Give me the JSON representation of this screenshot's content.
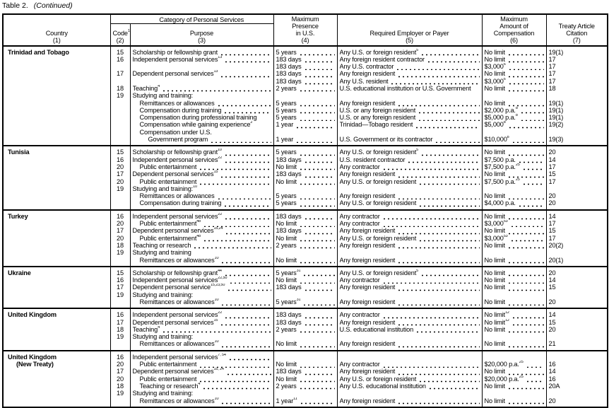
{
  "title": {
    "label": "Table 2.",
    "note": "(Continued)"
  },
  "headers": {
    "country": "Country",
    "country_num": "(1)",
    "code": "Code",
    "code_sup": "1",
    "code_num": "(2)",
    "category": "Category of Personal Services",
    "purpose": "Purpose",
    "purpose_num": "(3)",
    "presence": [
      "Maximum",
      "Presence",
      "in U.S."
    ],
    "presence_num": "(4)",
    "payer": "Required Employer or Payer",
    "payer_num": "(5)",
    "amount": [
      "Maximum",
      "Amount of",
      "Compensation"
    ],
    "amount_num": "(6)",
    "citation": [
      "Treaty Article",
      "Citation"
    ],
    "citation_num": "(7)"
  },
  "sections": [
    {
      "country": [
        "Trinidad and Tobago"
      ],
      "rows": [
        {
          "code": "15",
          "purpose": "Scholarship or fellowship grant",
          "presence": "5 years",
          "payer": "Any U.S. or foreign resident",
          "payer_sup": "5",
          "amount": "No limit",
          "citation": "19(1)"
        },
        {
          "code": "16",
          "purpose": "Independent personal services",
          "purpose_sup": "13",
          "presence": "183 days",
          "payer": "Any foreign resident contractor",
          "amount": "No limit",
          "citation": "17"
        },
        {
          "presence": "183 days",
          "payer": "Any U.S. contractor",
          "amount": "$3,000",
          "amount_sup": "6",
          "citation": "17"
        },
        {
          "code": "17",
          "purpose": "Dependent personal services",
          "purpose_sup": "13",
          "presence": "183 days",
          "payer": "Any foreign resident",
          "amount": "No limit",
          "citation": "17"
        },
        {
          "presence": "183 days",
          "payer": "Any U.S. resident",
          "amount": "$3,000",
          "amount_sup": "6",
          "citation": "17"
        },
        {
          "code": "18",
          "purpose": "Teaching",
          "purpose_sup": "4",
          "presence": "2 years",
          "payer": "U.S. educational institution or U.S. Government",
          "payer_nd": true,
          "amount": "No limit",
          "citation": "18"
        },
        {
          "code": "19",
          "purpose": "Studying and training:",
          "purpose_nd": true
        },
        {
          "indent": 1,
          "purpose": "Remittances or allowances",
          "presence": "5 years",
          "payer": "Any foreign resident",
          "amount": "No limit",
          "citation": "19(1)"
        },
        {
          "indent": 1,
          "purpose": "Compensation during training",
          "presence": "5 years",
          "payer": "U.S. or any foreign resident",
          "amount": "$2,000 p.a.",
          "amount_sup": "8",
          "citation": "19(1)"
        },
        {
          "indent": 1,
          "purpose": "Compensation during professional training",
          "purpose_nd": true,
          "presence": "5 years",
          "payer": "U.S. or any foreign resident",
          "amount": "$5,000 p.a.",
          "amount_sup": "8",
          "citation": "19(1)"
        },
        {
          "indent": 1,
          "purpose": "Compensation while gaining experience",
          "purpose_sup": "2",
          "purpose_nd": true,
          "presence": "1 year",
          "payer": "Trinidad—Tobago resident",
          "amount": "$5,000",
          "amount_sup": "8",
          "citation": "19(2)"
        },
        {
          "indent": 1,
          "purpose": "Compensation under U.S.",
          "purpose_nd": true
        },
        {
          "indent": 2,
          "purpose": "Government program",
          "presence": "1 year",
          "payer": "U.S. Government or its contractor",
          "amount": "$10,000",
          "amount_sup": "8",
          "citation": "19(3)"
        }
      ]
    },
    {
      "country": [
        "Tunisia"
      ],
      "rows": [
        {
          "code": "15",
          "purpose": "Scholarship or fellowship grant",
          "purpose_sup": "10",
          "presence": "5 years",
          "payer": "Any U.S. or foreign resident",
          "payer_sup": "5",
          "amount": "No limit",
          "citation": "20"
        },
        {
          "code": "16",
          "purpose": "Independent personal services",
          "purpose_sup": "22",
          "presence": "183 days",
          "payer": "U.S. resident contractor",
          "amount": "$7,500 p.a.",
          "citation": "14"
        },
        {
          "code": "20",
          "indent": 1,
          "purpose": "Public entertainment",
          "presence": "No limit",
          "payer": "Any contractor",
          "amount": "$7,500 p.a.",
          "amount_sup": "25",
          "citation": "17"
        },
        {
          "code": "17",
          "purpose": "Dependent personal services",
          "purpose_sup": "15",
          "presence": "183 days",
          "payer": "Any foreign resident",
          "amount": "No limit",
          "citation": "15"
        },
        {
          "code": "20",
          "indent": 1,
          "purpose": "Public entertainment",
          "presence": "No limit",
          "payer": "Any U.S. or foreign resident",
          "amount": "$7,500 p.a.",
          "amount_sup": "25",
          "citation": "17"
        },
        {
          "code": "19",
          "purpose": "Studying and training:",
          "purpose_sup": "10",
          "purpose_nd": true
        },
        {
          "indent": 1,
          "purpose": "Remittances or allowances",
          "presence": "5 years",
          "payer": "Any foreign resident",
          "amount": "No limit",
          "citation": "20"
        },
        {
          "indent": 1,
          "purpose": "Compensation during training",
          "presence": "5 years",
          "payer": "Any U.S. or foreign resident",
          "amount": "$4,000 p.a.",
          "citation": "20"
        }
      ]
    },
    {
      "country": [
        "Turkey"
      ],
      "rows": [
        {
          "code": "16",
          "purpose": "Independent personal services",
          "purpose_sup": "22",
          "presence": "183 days",
          "payer": "Any contractor",
          "amount": "No limit",
          "citation": "14"
        },
        {
          "code": "20",
          "indent": 1,
          "purpose": "Public entertainment",
          "purpose_sup": "48",
          "presence": "No limit",
          "payer": "Any contractor",
          "amount": "$3,000",
          "amount_sup": "53",
          "citation": "17"
        },
        {
          "code": "17",
          "purpose": "Dependent personal services",
          "purpose_sup": "15,24",
          "presence": "183 days",
          "payer": "Any foreign resident",
          "amount": "No limit",
          "citation": "15"
        },
        {
          "code": "20",
          "indent": 1,
          "purpose": "Public entertainment",
          "purpose_sup": "48",
          "presence": "No limit",
          "payer": "Any U.S. or foreign resident",
          "amount": "$3,000",
          "amount_sup": "53",
          "citation": "17"
        },
        {
          "code": "18",
          "purpose": "Teaching or research",
          "presence": "2 years",
          "payer": "Any foreign resident",
          "amount": "No limit",
          "citation": "20(2)"
        },
        {
          "code": "19",
          "purpose": "Studying and training",
          "purpose_nd": true
        },
        {
          "indent": 1,
          "purpose": "Remittances or allowances",
          "purpose_sup": "10",
          "presence": "No limit",
          "payer": "Any foreign resident",
          "amount": "No limit",
          "citation": "20(1)"
        }
      ]
    },
    {
      "country": [
        "Ukraine"
      ],
      "rows": [
        {
          "code": "15",
          "purpose": "Scholarship or fellowship grant",
          "purpose_sup": "44",
          "presence": "5 years",
          "presence_sup": "31",
          "payer": "Any U.S. or foreign resident",
          "payer_sup": "5",
          "amount": "No limit",
          "citation": "20"
        },
        {
          "code": "16",
          "purpose": "Independent personal services",
          "purpose_sup": "22,50",
          "presence": "No limit",
          "payer": "Any contractor",
          "amount": "No limit",
          "citation": "14"
        },
        {
          "code": "17",
          "purpose": "Dependent personal service",
          "purpose_sup": "15,23,50",
          "presence": "183 days",
          "payer": "Any foreign resident",
          "amount": "No limit",
          "citation": "15"
        },
        {
          "code": "19",
          "purpose": "Studying and training:",
          "purpose_nd": true
        },
        {
          "indent": 1,
          "purpose": "Remittances or allowances",
          "purpose_sup": "10",
          "presence": "5 years",
          "presence_sup": "31",
          "payer": "Any foreign resident",
          "amount": "No limit",
          "citation": "20"
        }
      ]
    },
    {
      "country": [
        "United Kingdom"
      ],
      "rows": [
        {
          "code": "16",
          "purpose": "Independent personal services",
          "purpose_sup": "22",
          "presence": "183 days",
          "payer": "Any contractor",
          "amount": "No limit",
          "amount_sup": "12",
          "citation": "14"
        },
        {
          "code": "17",
          "purpose": "Dependent personal services",
          "purpose_sup": "15",
          "presence": "183 days",
          "payer": "Any foreign resident",
          "amount": "No limit",
          "amount_sup": "12",
          "citation": "15"
        },
        {
          "code": "18",
          "purpose": "Teaching",
          "purpose_sup": "4",
          "presence": "2 years",
          "payer": "U.S. educational institution",
          "amount": "No limit",
          "citation": "20"
        },
        {
          "code": "19",
          "purpose": "Studying and training:",
          "purpose_nd": true
        },
        {
          "indent": 1,
          "purpose": "Remittances or allowances",
          "purpose_sup": "10",
          "presence": "No limit",
          "payer": "Any foreign resident",
          "amount": "No limit",
          "citation": "21"
        }
      ]
    },
    {
      "country": [
        "United Kingdom",
        "(New Treaty)"
      ],
      "rows": [
        {
          "code": "16",
          "purpose": "Independent personal services",
          "purpose_sup": "7, 54"
        },
        {
          "code": "20",
          "indent": 1,
          "purpose": "Public entertainment",
          "presence": "No limit",
          "payer": "Any contractor",
          "amount": "$20,000 p.a.",
          "amount_sup": "25",
          "citation": "16"
        },
        {
          "code": "17",
          "purpose": "Dependent personal services",
          "purpose_sup": "15, 24",
          "presence": "183 days",
          "payer": "Any foreign resident",
          "amount": "No limit",
          "citation": "14"
        },
        {
          "code": "20",
          "indent": 1,
          "purpose": "Public entertainment",
          "presence": "No limit",
          "payer": "Any U.S. or foreign resident",
          "amount": "$20,000 p.a.",
          "amount_sup": "25",
          "citation": "16"
        },
        {
          "code": "18",
          "indent": 1,
          "purpose": "Teaching or research",
          "purpose_sup": "4",
          "presence": "2 years",
          "payer": "Any U.S. educational institution",
          "amount": "No limit",
          "citation": "20A"
        },
        {
          "code": "19",
          "purpose": "Studying and training:",
          "purpose_nd": true
        },
        {
          "indent": 1,
          "purpose": "Remittances or allowances",
          "purpose_sup": "10",
          "presence": "1 year",
          "presence_sup": "11",
          "payer": "Any foreign resident",
          "amount": "No limit",
          "citation": "20"
        }
      ]
    }
  ]
}
